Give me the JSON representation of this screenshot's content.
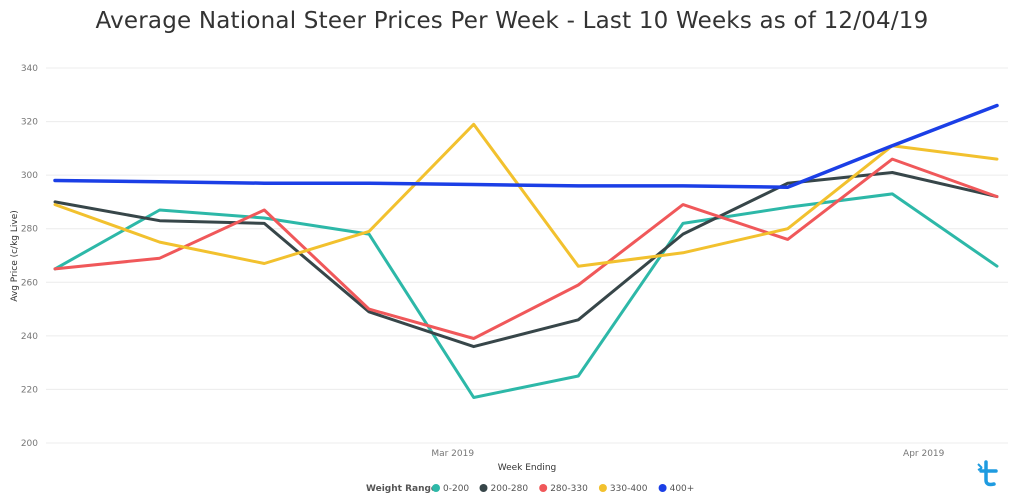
{
  "chart_data": {
    "type": "line",
    "title": "Average National Steer Prices Per Week - Last 10 Weeks as of 12/04/19",
    "xlabel": "Week Ending",
    "ylabel": "Avg Price (c/kg Live)",
    "ylim": [
      200,
      340
    ],
    "yticks": [
      200,
      220,
      240,
      260,
      280,
      300,
      320,
      340
    ],
    "grid": true,
    "x_points": 10,
    "x_tick_labels": [
      {
        "label": "Mar 2019",
        "pos": 3.8
      },
      {
        "label": "Apr 2019",
        "pos": 8.3
      }
    ],
    "legend": {
      "title": "Weight Range",
      "placement": "bottom-center"
    },
    "series": [
      {
        "name": "0-200",
        "color": "#2DB8A8",
        "values": [
          265,
          287,
          284,
          278,
          217,
          225,
          282,
          288,
          293,
          266
        ]
      },
      {
        "name": "200-280",
        "color": "#374649",
        "values": [
          290,
          283,
          282,
          249,
          236,
          246,
          278,
          297,
          301,
          292
        ]
      },
      {
        "name": "280-330",
        "color": "#F0585A",
        "values": [
          265,
          269,
          287,
          250,
          239,
          259,
          289,
          276,
          306,
          292
        ]
      },
      {
        "name": "330-400",
        "color": "#F2C12E",
        "values": [
          289,
          275,
          267,
          279,
          319,
          266,
          271,
          280,
          311,
          306
        ]
      },
      {
        "name": "400+",
        "color": "#1B3FE6",
        "values": [
          298,
          297.5,
          297,
          297,
          296.5,
          296,
          296,
          295.5,
          311,
          326
        ]
      }
    ]
  }
}
